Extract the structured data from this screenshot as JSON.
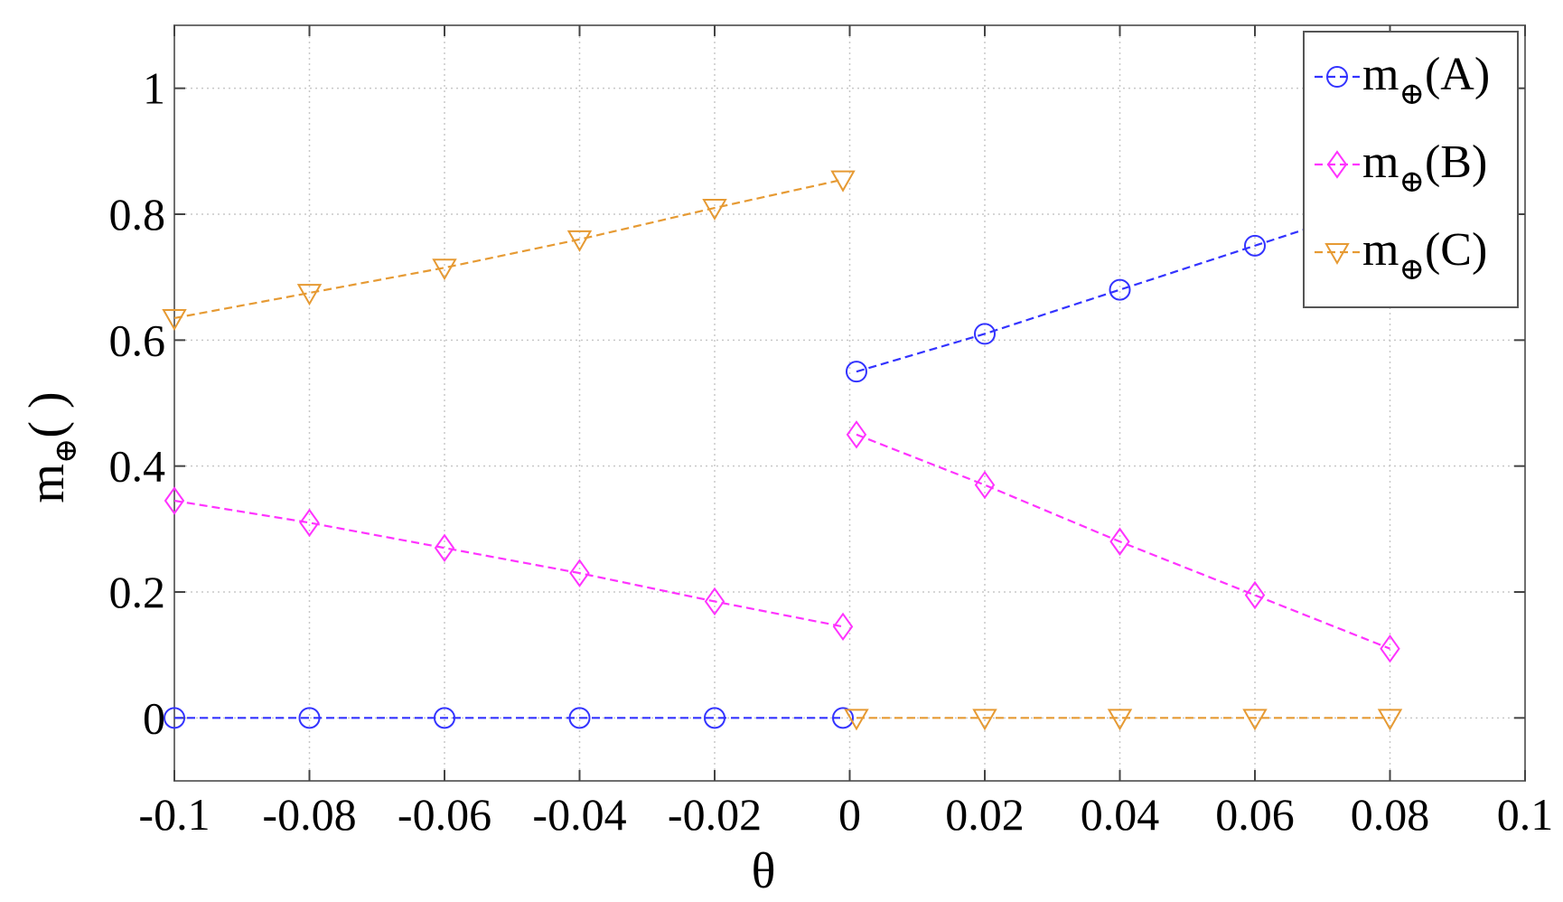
{
  "chart_data": {
    "type": "line",
    "title": "",
    "xlabel": "θ",
    "ylabel": {
      "main": "m",
      "sub": "⊕",
      "suffix": "( )"
    },
    "xlim": [
      -0.1,
      0.1
    ],
    "ylim": [
      -0.1,
      1.1
    ],
    "xticks": [
      -0.1,
      -0.08,
      -0.06,
      -0.04,
      -0.02,
      0,
      0.02,
      0.04,
      0.06,
      0.08,
      0.1
    ],
    "xtick_labels": [
      "-0.1",
      "-0.08",
      "-0.06",
      "-0.04",
      "-0.02",
      "0",
      "0.02",
      "0.04",
      "0.06",
      "0.08",
      "0.1"
    ],
    "yticks": [
      0,
      0.2,
      0.4,
      0.6,
      0.8,
      1
    ],
    "ytick_labels": [
      "0",
      "0.2",
      "0.4",
      "0.6",
      "0.8",
      "1"
    ],
    "grid": true,
    "legend_position": "top-right",
    "series": [
      {
        "name": {
          "main": "m",
          "sub": "⊕",
          "suffix": "(A)"
        },
        "color": "#3333ff",
        "marker": "circle",
        "line_style": "dashed",
        "segments": [
          {
            "x": [
              -0.1,
              -0.08,
              -0.06,
              -0.04,
              -0.02,
              -0.001
            ],
            "y": [
              0,
              0,
              0,
              0,
              0,
              0
            ]
          },
          {
            "x": [
              0.001,
              0.02,
              0.04,
              0.06,
              0.08
            ],
            "y": [
              0.55,
              0.61,
              0.68,
              0.75,
              0.82
            ]
          }
        ]
      },
      {
        "name": {
          "main": "m",
          "sub": "⊕",
          "suffix": "(B)"
        },
        "color": "#ff33ff",
        "marker": "diamond",
        "line_style": "dashed",
        "segments": [
          {
            "x": [
              -0.1,
              -0.08,
              -0.06,
              -0.04,
              -0.02,
              -0.001
            ],
            "y": [
              0.345,
              0.31,
              0.27,
              0.23,
              0.185,
              0.145
            ]
          },
          {
            "x": [
              0.001,
              0.02,
              0.04,
              0.06,
              0.08
            ],
            "y": [
              0.45,
              0.37,
              0.28,
              0.195,
              0.11
            ]
          }
        ]
      },
      {
        "name": {
          "main": "m",
          "sub": "⊕",
          "suffix": "(C)"
        },
        "color": "#e69a33",
        "marker": "triangle-down",
        "line_style": "dashed",
        "segments": [
          {
            "x": [
              -0.1,
              -0.08,
              -0.06,
              -0.04,
              -0.02,
              -0.001
            ],
            "y": [
              0.635,
              0.675,
              0.715,
              0.76,
              0.81,
              0.855
            ]
          },
          {
            "x": [
              0.001,
              0.02,
              0.04,
              0.06,
              0.08
            ],
            "y": [
              0,
              0,
              0,
              0,
              0
            ]
          }
        ]
      }
    ]
  }
}
